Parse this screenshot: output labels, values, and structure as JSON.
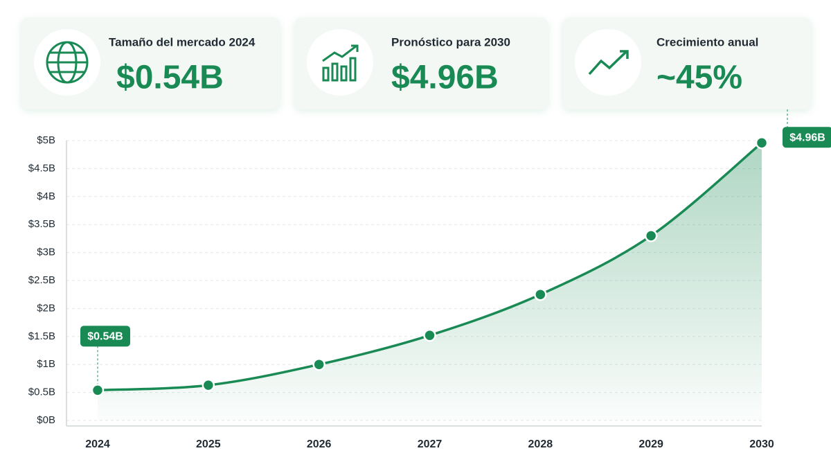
{
  "kpis": [
    {
      "label": "Tamaño del mercado 2024",
      "value": "$0.54B"
    },
    {
      "label": "Pronóstico para 2030",
      "value": "$4.96B"
    },
    {
      "label": "Crecimiento anual",
      "value": "~45%"
    }
  ],
  "chart_data": {
    "type": "area",
    "categories": [
      "2024",
      "2025",
      "2026",
      "2027",
      "2028",
      "2029",
      "2030"
    ],
    "values": [
      0.54,
      0.63,
      1.0,
      1.52,
      2.25,
      3.3,
      4.96
    ],
    "value_labels": [
      "$0.54B",
      null,
      null,
      null,
      null,
      null,
      "$4.96B"
    ],
    "color": "#1a8a55",
    "ylim": [
      0,
      5
    ],
    "yticks": [
      {
        "value": 0,
        "label": "$0B"
      },
      {
        "value": 0.5,
        "label": "$0.5B"
      },
      {
        "value": 1,
        "label": "$1B"
      },
      {
        "value": 1.5,
        "label": "$1.5B"
      },
      {
        "value": 2,
        "label": "$2B"
      },
      {
        "value": 2.5,
        "label": "$2.5B"
      },
      {
        "value": 3,
        "label": "$3B"
      },
      {
        "value": 3.5,
        "label": "$3.5B"
      },
      {
        "value": 4,
        "label": "$4B"
      },
      {
        "value": 4.5,
        "label": "$4.5B"
      },
      {
        "value": 5,
        "label": "$5B"
      }
    ],
    "grid": true
  }
}
